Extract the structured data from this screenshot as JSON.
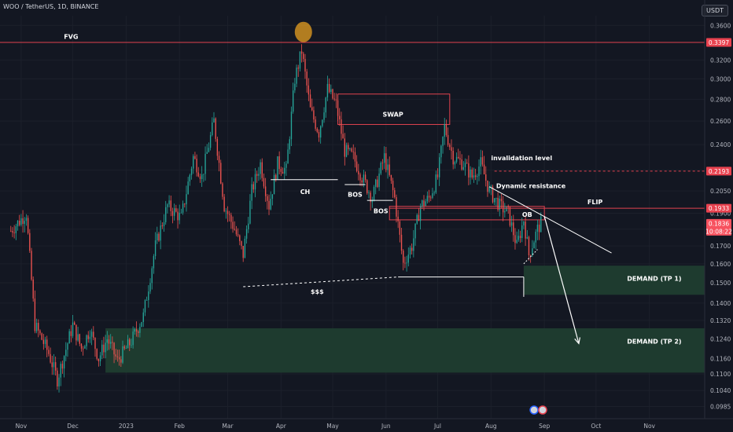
{
  "header": {
    "ticker": "WOO / TetherUS, 1D, BINANCE",
    "currency": "USDT"
  },
  "colors": {
    "background": "#131722",
    "up": "#26a69a",
    "down": "#ef5350",
    "zone_border": "#e0424f",
    "demand_fill": "#1e3b2f",
    "annotation": "#ffffff"
  },
  "chart_data": {
    "type": "candlestick",
    "y_scale": "log",
    "ylim": [
      0.0945,
      0.372
    ],
    "y_ticks": [
      "0.3600",
      "0.3200",
      "0.3000",
      "0.2800",
      "0.2600",
      "0.2400",
      "0.2200",
      "0.2050",
      "0.1900",
      "0.1800",
      "0.1700",
      "0.1600",
      "0.1500",
      "0.1400",
      "0.1320",
      "0.1240",
      "0.1160",
      "0.1100",
      "0.1040",
      "0.0985"
    ],
    "x_ticks": [
      "Nov",
      "Dec",
      "2023",
      "Feb",
      "Mar",
      "Apr",
      "May",
      "Jun",
      "Jul",
      "Aug",
      "Sep",
      "Oct",
      "Nov"
    ],
    "price_badges": [
      {
        "label": "0.3397",
        "value": 0.3397
      },
      {
        "label": "0.2193",
        "value": 0.2193
      },
      {
        "label": "0.1933",
        "value": 0.1933
      },
      {
        "label": "0.1836",
        "value": 0.1836
      },
      {
        "label": "10:08:22",
        "value": 0.1795
      }
    ],
    "last_price": 0.1836,
    "countdown": "10:08:22",
    "anchors": [
      {
        "date": "2022-10-26",
        "price": 0.179
      },
      {
        "date": "2022-11-04",
        "price": 0.19
      },
      {
        "date": "2022-11-09",
        "price": 0.13
      },
      {
        "date": "2022-11-17",
        "price": 0.118
      },
      {
        "date": "2022-11-22",
        "price": 0.108
      },
      {
        "date": "2022-12-01",
        "price": 0.13
      },
      {
        "date": "2022-12-06",
        "price": 0.12
      },
      {
        "date": "2022-12-11",
        "price": 0.128
      },
      {
        "date": "2022-12-16",
        "price": 0.116
      },
      {
        "date": "2022-12-21",
        "price": 0.124
      },
      {
        "date": "2022-12-27",
        "price": 0.115
      },
      {
        "date": "2023-01-04",
        "price": 0.123
      },
      {
        "date": "2023-01-11",
        "price": 0.134
      },
      {
        "date": "2023-01-18",
        "price": 0.17
      },
      {
        "date": "2023-01-25",
        "price": 0.195
      },
      {
        "date": "2023-02-02",
        "price": 0.187
      },
      {
        "date": "2023-02-09",
        "price": 0.23
      },
      {
        "date": "2023-02-14",
        "price": 0.215
      },
      {
        "date": "2023-02-21",
        "price": 0.26
      },
      {
        "date": "2023-02-27",
        "price": 0.195
      },
      {
        "date": "2023-03-05",
        "price": 0.18
      },
      {
        "date": "2023-03-10",
        "price": 0.165
      },
      {
        "date": "2023-03-15",
        "price": 0.205
      },
      {
        "date": "2023-03-20",
        "price": 0.225
      },
      {
        "date": "2023-03-25",
        "price": 0.195
      },
      {
        "date": "2023-03-30",
        "price": 0.225
      },
      {
        "date": "2023-04-04",
        "price": 0.22
      },
      {
        "date": "2023-04-09",
        "price": 0.3
      },
      {
        "date": "2023-04-13",
        "price": 0.33
      },
      {
        "date": "2023-04-18",
        "price": 0.27
      },
      {
        "date": "2023-04-23",
        "price": 0.25
      },
      {
        "date": "2023-04-28",
        "price": 0.29
      },
      {
        "date": "2023-05-03",
        "price": 0.275
      },
      {
        "date": "2023-05-08",
        "price": 0.235
      },
      {
        "date": "2023-05-13",
        "price": 0.23
      },
      {
        "date": "2023-05-18",
        "price": 0.215
      },
      {
        "date": "2023-05-24",
        "price": 0.2
      },
      {
        "date": "2023-05-31",
        "price": 0.23
      },
      {
        "date": "2023-06-06",
        "price": 0.2
      },
      {
        "date": "2023-06-11",
        "price": 0.16
      },
      {
        "date": "2023-06-16",
        "price": 0.17
      },
      {
        "date": "2023-06-21",
        "price": 0.195
      },
      {
        "date": "2023-06-26",
        "price": 0.2
      },
      {
        "date": "2023-07-01",
        "price": 0.215
      },
      {
        "date": "2023-07-05",
        "price": 0.255
      },
      {
        "date": "2023-07-10",
        "price": 0.23
      },
      {
        "date": "2023-07-16",
        "price": 0.225
      },
      {
        "date": "2023-07-21",
        "price": 0.215
      },
      {
        "date": "2023-07-26",
        "price": 0.225
      },
      {
        "date": "2023-07-31",
        "price": 0.205
      },
      {
        "date": "2023-08-06",
        "price": 0.195
      },
      {
        "date": "2023-08-11",
        "price": 0.19
      },
      {
        "date": "2023-08-16",
        "price": 0.17
      },
      {
        "date": "2023-08-20",
        "price": 0.186
      },
      {
        "date": "2023-08-23",
        "price": 0.165
      },
      {
        "date": "2023-08-28",
        "price": 0.18
      },
      {
        "date": "2023-08-30",
        "price": 0.1836
      }
    ],
    "annotations": [
      {
        "text": "FVG"
      },
      {
        "text": "SWAP"
      },
      {
        "text": "CH"
      },
      {
        "text": "BOS"
      },
      {
        "text": "BOS"
      },
      {
        "text": "$$$"
      },
      {
        "text": "invalidation level"
      },
      {
        "text": "Dynamic resistance"
      },
      {
        "text": "OB"
      },
      {
        "text": "FLIP"
      },
      {
        "text": "DEMAND (TP 1)"
      },
      {
        "text": "DEMAND (TP 2)"
      }
    ],
    "levels": {
      "fvg": 0.3397,
      "invalidation": 0.2193,
      "flip": 0.1933,
      "swap_zone": [
        0.257,
        0.285
      ],
      "ob_zone": [
        0.1858,
        0.1945
      ],
      "demand_tp1": [
        0.144,
        0.159
      ],
      "demand_tp2": [
        0.1105,
        0.1285
      ]
    }
  }
}
